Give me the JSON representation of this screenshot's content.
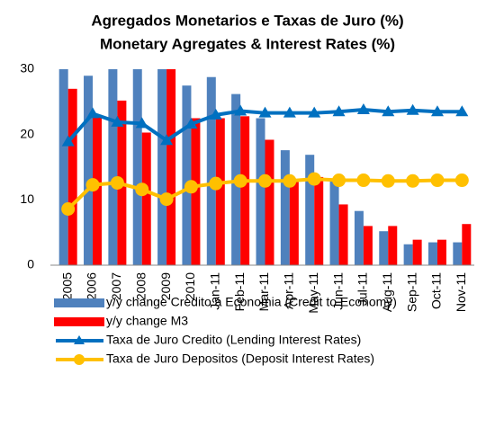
{
  "chart_data": {
    "type": "bar",
    "title": "Agregados Monetarios e Taxas de Juro (%)",
    "subtitle": "Monetary Agregates & Interest Rates (%)",
    "categories": [
      "2005",
      "2006",
      "2007",
      "2008",
      "2009",
      "2010",
      "Jan-11",
      "Feb-11",
      "Mar-11",
      "Apr-11",
      "May-11",
      "Jun-11",
      "Jul-11",
      "Aug-11",
      "Sep-11",
      "Oct-11",
      "Nov-11"
    ],
    "series": [
      {
        "name": "y/y change Credito a Economia (Credit to Economy)",
        "type": "bar",
        "color": "#4f81bd",
        "values": [
          30,
          29,
          30,
          30,
          30,
          27.5,
          28.8,
          26.2,
          22.5,
          17.6,
          16.9,
          13,
          8.3,
          5.2,
          3.2,
          3.5,
          3.5
        ]
      },
      {
        "name": "y/y change M3",
        "type": "bar",
        "color": "#ff0000",
        "values": [
          27,
          23,
          25.2,
          20.3,
          30,
          22.5,
          22.5,
          22.8,
          19.2,
          13,
          13.5,
          9.3,
          6,
          6,
          3.9,
          3.9,
          6.3
        ]
      },
      {
        "name": "Taxa de Juro Credito (Lending Interest Rates)",
        "type": "line",
        "marker": "triangle",
        "color": "#0070c0",
        "values": [
          18.9,
          23.2,
          21.9,
          21.7,
          19.1,
          21.6,
          23,
          23.6,
          23.3,
          23.3,
          23.3,
          23.5,
          23.8,
          23.5,
          23.7,
          23.5,
          23.5
        ]
      },
      {
        "name": "Taxa de Juro Depositos (Deposit Interest Rates)",
        "type": "line",
        "marker": "circle",
        "color": "#ffc000",
        "values": [
          8.6,
          12.3,
          12.6,
          11.6,
          10.1,
          12,
          12.5,
          12.9,
          12.9,
          12.9,
          13.2,
          13,
          13,
          12.9,
          12.9,
          13,
          13
        ]
      }
    ],
    "ylim": [
      0,
      30
    ],
    "yticks": [
      0,
      10,
      20,
      30
    ],
    "grid": false
  }
}
